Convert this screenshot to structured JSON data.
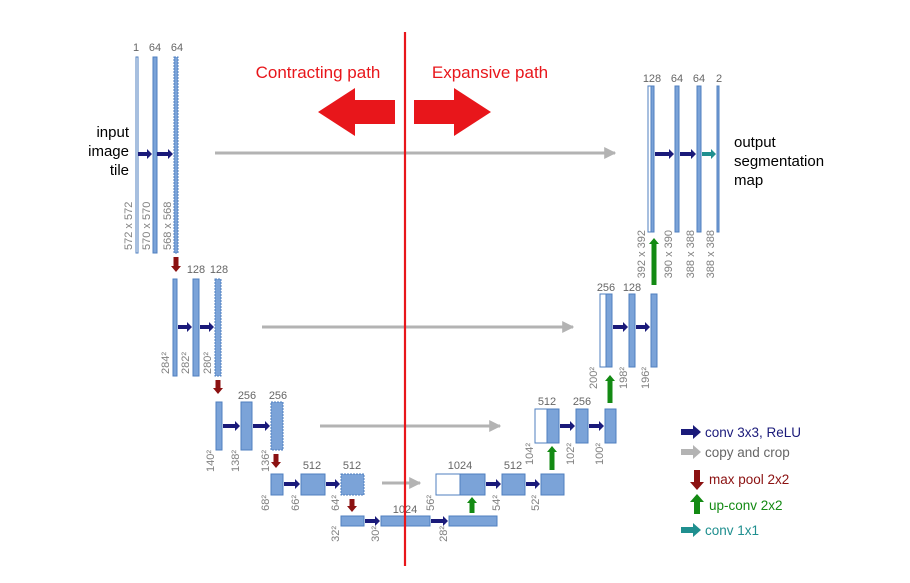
{
  "colors": {
    "block_fill": "#7ba3d8",
    "block_stroke": "#4f7fbf",
    "conv_arrow": "#1a1a7a",
    "copy_arrow": "#b3b3b3",
    "pool_arrow": "#8b1111",
    "upconv_arrow": "#138a13",
    "conv1x1_arrow": "#1f8f8f",
    "divider": "#e8161b",
    "dim_text": "#808080"
  },
  "titles": {
    "contracting": "Contracting path",
    "expansive": "Expansive path"
  },
  "labels": {
    "input": [
      "input",
      "image",
      "tile"
    ],
    "output": [
      "output",
      "segmentation",
      "map"
    ]
  },
  "legend": [
    {
      "label": "conv 3x3, ReLU",
      "color": "#1a1a7a",
      "icon": "right-arrow-icon"
    },
    {
      "label": "copy and crop",
      "color": "#666666",
      "icon": "gray-right-arrow-icon"
    },
    {
      "label": "max pool 2x2",
      "color": "#8b1111",
      "icon": "down-arrow-icon"
    },
    {
      "label": "up-conv 2x2",
      "color": "#138a13",
      "icon": "up-arrow-icon"
    },
    {
      "label": "conv 1x1",
      "color": "#1f8f8f",
      "icon": "teal-right-arrow-icon"
    }
  ],
  "blocks": {
    "L1": [
      {
        "channels": "1",
        "size": "572 x 572"
      },
      {
        "channels": "64",
        "size": "570 x 570"
      },
      {
        "channels": "64",
        "size": "568 x 568"
      }
    ],
    "L2": [
      {
        "channels": "",
        "size": "284²"
      },
      {
        "channels": "128",
        "size": "282²"
      },
      {
        "channels": "128",
        "size": "280²"
      }
    ],
    "L3": [
      {
        "channels": "",
        "size": "140²"
      },
      {
        "channels": "256",
        "size": "138²"
      },
      {
        "channels": "256",
        "size": "136²"
      }
    ],
    "L4": [
      {
        "channels": "",
        "size": "68²"
      },
      {
        "channels": "512",
        "size": "66²"
      },
      {
        "channels": "512",
        "size": "64²"
      }
    ],
    "L5": [
      {
        "channels": "",
        "size": "32²"
      },
      {
        "channels": "1024",
        "size": "30²"
      },
      {
        "channels": "",
        "size": "28²"
      }
    ],
    "R4": [
      {
        "channels": "1024",
        "size": "56²"
      },
      {
        "channels": "512",
        "size": "54²"
      },
      {
        "channels": "",
        "size": "52²"
      }
    ],
    "R3": [
      {
        "channels": "512",
        "size": "104²"
      },
      {
        "channels": "256",
        "size": "102²"
      },
      {
        "channels": "",
        "size": "100²"
      }
    ],
    "R2": [
      {
        "channels": "256",
        "size": "200²"
      },
      {
        "channels": "128",
        "size": "198²"
      },
      {
        "channels": "",
        "size": "196²"
      }
    ],
    "R1": [
      {
        "channels": "128",
        "size": "392 x 392"
      },
      {
        "channels": "64",
        "size": "390 x 390"
      },
      {
        "channels": "64",
        "size": "388 x 388"
      },
      {
        "channels": "2",
        "size": "388 x 388"
      }
    ]
  }
}
